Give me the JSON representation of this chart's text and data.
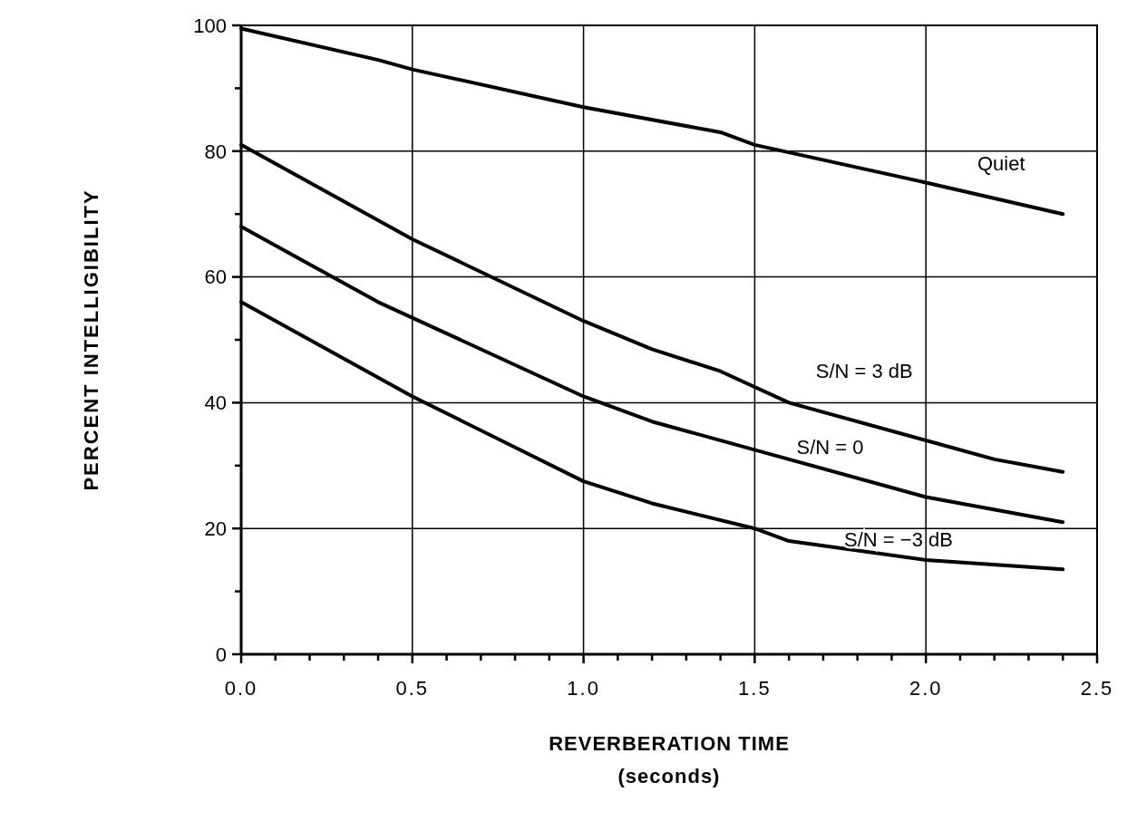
{
  "chart_data": {
    "type": "line",
    "xlabel": "REVERBERATION TIME\n(seconds)",
    "ylabel": "PERCENT INTELLIGIBILITY",
    "xlim": [
      0,
      2.5
    ],
    "ylim": [
      0,
      100
    ],
    "xticks": [
      {
        "value": 0,
        "label": "0.0"
      },
      {
        "value": 0.1,
        "label": null
      },
      {
        "value": 0.2,
        "label": null
      },
      {
        "value": 0.3,
        "label": null
      },
      {
        "value": 0.4,
        "label": null
      },
      {
        "value": 0.5,
        "label": "0.5"
      },
      {
        "value": 0.6,
        "label": null
      },
      {
        "value": 0.7,
        "label": null
      },
      {
        "value": 0.8,
        "label": null
      },
      {
        "value": 0.9,
        "label": null
      },
      {
        "value": 1,
        "label": "1.0"
      },
      {
        "value": 1.1,
        "label": null
      },
      {
        "value": 1.2,
        "label": null
      },
      {
        "value": 1.3,
        "label": null
      },
      {
        "value": 1.4,
        "label": null
      },
      {
        "value": 1.5,
        "label": "1.5"
      },
      {
        "value": 1.6,
        "label": null
      },
      {
        "value": 1.7,
        "label": null
      },
      {
        "value": 1.8,
        "label": null
      },
      {
        "value": 1.9,
        "label": null
      },
      {
        "value": 2,
        "label": "2.0"
      },
      {
        "value": 2.1,
        "label": null
      },
      {
        "value": 2.2,
        "label": null
      },
      {
        "value": 2.3,
        "label": null
      },
      {
        "value": 2.4,
        "label": null
      },
      {
        "value": 2.5,
        "label": "2.5"
      }
    ],
    "yticks": [
      0,
      {
        "value": 10,
        "label": null
      },
      20,
      {
        "value": 30,
        "label": null
      },
      40,
      {
        "value": 50,
        "label": null
      },
      60,
      {
        "value": 70,
        "label": null
      },
      80,
      {
        "value": 90,
        "label": null
      },
      100
    ],
    "grid": true,
    "line_style": "solid",
    "series": [
      {
        "name": "Quiet",
        "color": "#000000",
        "x": [
          0,
          0.4,
          0.5,
          1.0,
          1.4,
          1.5,
          2.0,
          2.4
        ],
        "values": [
          99.5,
          94.5,
          93,
          87,
          83,
          81,
          75,
          70
        ]
      },
      {
        "name": "S/N = 3 dB",
        "color": "#000000",
        "x": [
          0,
          0.5,
          1.0,
          1.2,
          1.4,
          1.6,
          2.0,
          2.2,
          2.4
        ],
        "values": [
          81,
          66,
          53,
          48.5,
          45,
          40,
          34,
          31,
          29
        ]
      },
      {
        "name": "S/N = 0",
        "color": "#000000",
        "x": [
          0,
          0.2,
          0.4,
          0.8,
          1.0,
          1.2,
          1.6,
          2.0,
          2.4
        ],
        "values": [
          68,
          62,
          56,
          46,
          41,
          37,
          31,
          25,
          21
        ]
      },
      {
        "name": "S/N = −3 dB",
        "color": "#000000",
        "x": [
          0,
          0.5,
          1.0,
          1.2,
          1.5,
          1.6,
          2.0,
          2.4
        ],
        "values": [
          56,
          41,
          27.5,
          24,
          20,
          18,
          15,
          13.5
        ]
      }
    ]
  }
}
